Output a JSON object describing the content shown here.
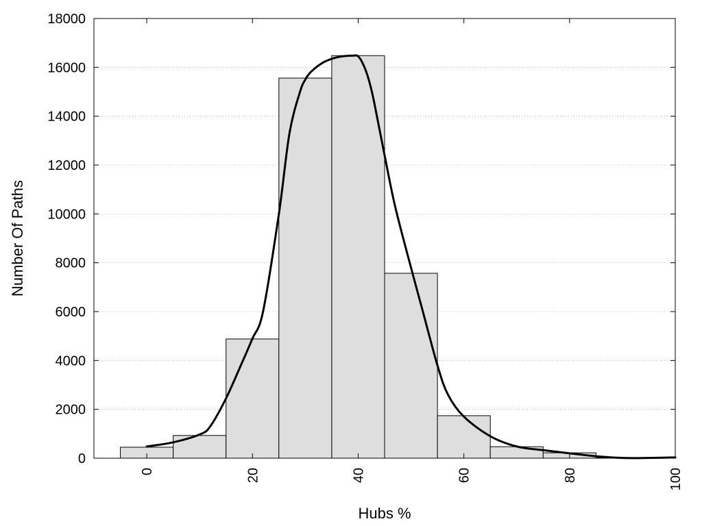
{
  "chart_data": {
    "type": "bar",
    "xlabel": "Hubs %",
    "ylabel": "Number Of Paths",
    "xlim": [
      -10,
      100
    ],
    "ylim": [
      0,
      18000
    ],
    "x_ticks": [
      0,
      20,
      40,
      60,
      80,
      100
    ],
    "y_ticks": [
      0,
      2000,
      4000,
      6000,
      8000,
      10000,
      12000,
      14000,
      16000,
      18000
    ],
    "grid": "horizontal-dotted",
    "bar_width": 10,
    "bars": [
      {
        "x": 0,
        "value": 450
      },
      {
        "x": 10,
        "value": 930
      },
      {
        "x": 20,
        "value": 4880
      },
      {
        "x": 30,
        "value": 15560
      },
      {
        "x": 40,
        "value": 16480
      },
      {
        "x": 50,
        "value": 7570
      },
      {
        "x": 60,
        "value": 1740
      },
      {
        "x": 70,
        "value": 470
      },
      {
        "x": 80,
        "value": 220
      },
      {
        "x": 90,
        "value": 20
      },
      {
        "x": 100,
        "value": 10
      }
    ],
    "curve": {
      "x": [
        0,
        5,
        10,
        12,
        15,
        18,
        20,
        22,
        25,
        27,
        29,
        30,
        31,
        33,
        35,
        37,
        39,
        40,
        41,
        42,
        43,
        45,
        47,
        50,
        52,
        55,
        57,
        60,
        65,
        70,
        75,
        80,
        85,
        90,
        95,
        100
      ],
      "y": [
        480,
        650,
        970,
        1300,
        2450,
        3900,
        4900,
        6000,
        10000,
        13300,
        15000,
        15500,
        15800,
        16150,
        16350,
        16450,
        16480,
        16450,
        16100,
        15500,
        14600,
        12400,
        10300,
        7800,
        6200,
        3800,
        2600,
        1700,
        900,
        480,
        330,
        200,
        80,
        10,
        10,
        30
      ]
    },
    "colors": {
      "bar_fill": "#dedede",
      "bar_stroke": "#000000",
      "curve": "#000000"
    }
  }
}
